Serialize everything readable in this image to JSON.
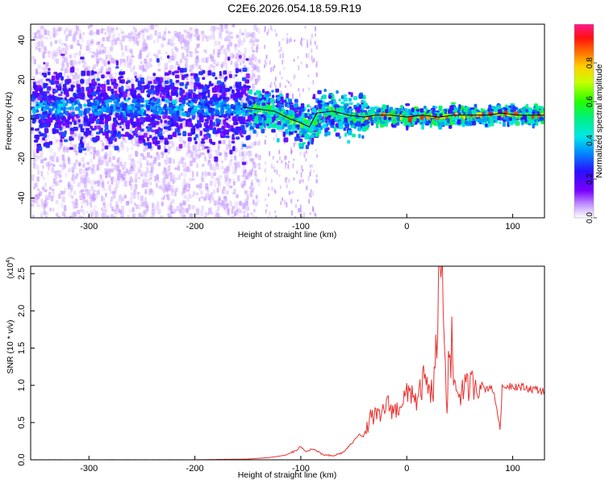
{
  "title": "C2E6.2026.054.18.59.R19",
  "colors": {
    "snr_line": "#e8322f",
    "ridge": "#000000",
    "background": "#ffffff"
  },
  "chart_data": [
    {
      "type": "heatmap",
      "xlabel": "Height of straight line (km)",
      "ylabel": "Frequency (Hz)",
      "xlim": [
        -355,
        130
      ],
      "ylim": [
        -50,
        48
      ],
      "x_ticks": [
        -300,
        -200,
        -100,
        0,
        100
      ],
      "y_ticks": [
        -40,
        -20,
        0,
        20,
        40
      ],
      "grid": false,
      "description": "time-frequency spectrogram; broadband speckle below -140 km, narrow band converging near 2 Hz above -40 km",
      "ridge": {
        "x": [
          -155,
          -140,
          -125,
          -110,
          -100,
          -92,
          -85,
          -70,
          -55,
          -40,
          -30,
          -15,
          0,
          15,
          30,
          45,
          60,
          75,
          90,
          105,
          115,
          130
        ],
        "y": [
          6,
          5,
          4,
          0,
          -2,
          -4,
          3,
          4,
          2,
          1,
          2,
          2,
          1,
          2,
          1,
          2,
          2,
          2,
          3,
          2,
          2,
          2
        ]
      },
      "colorbar": {
        "label": "Normalized spectral amplitude",
        "range": [
          0,
          1
        ],
        "ticks": [
          0.0,
          0.2,
          0.4,
          0.6,
          0.8
        ]
      }
    },
    {
      "type": "line",
      "xlabel": "Height of straight line (km)",
      "ylabel": "SNR (10 * v/v)",
      "y_multiplier": "(x10^4)",
      "y_multiplier_parts": {
        "base": "(x10",
        "exp": "4",
        "close": ")"
      },
      "xlim": [
        -355,
        130
      ],
      "ylim": [
        0,
        2.6
      ],
      "x_ticks": [
        -300,
        -200,
        -100,
        0,
        100
      ],
      "y_ticks": [
        0.0,
        0.5,
        1.0,
        1.5,
        2.0,
        2.5
      ],
      "grid": false,
      "series": [
        {
          "x": [
            -355,
            -300,
            -250,
            -200,
            -150,
            -130,
            -115,
            -105,
            -100,
            -95,
            -90,
            -85,
            -80,
            -70,
            -60,
            -50,
            -45,
            -40,
            -35,
            -30,
            -25,
            -20,
            -15,
            -10,
            -5,
            0,
            5,
            10,
            15,
            20,
            25,
            30,
            33,
            35,
            38,
            40,
            45,
            50,
            55,
            60,
            65,
            70,
            75,
            80,
            85,
            88,
            90,
            95,
            100,
            110,
            120,
            130
          ],
          "y": [
            0.0,
            0.0,
            0.0,
            0.0,
            0.01,
            0.03,
            0.06,
            0.12,
            0.18,
            0.1,
            0.15,
            0.12,
            0.07,
            0.05,
            0.1,
            0.25,
            0.35,
            0.3,
            0.55,
            0.6,
            0.55,
            0.75,
            0.7,
            0.65,
            0.8,
            0.85,
            0.95,
            0.75,
            1.05,
            1.0,
            0.9,
            2.1,
            2.6,
            1.6,
            0.7,
            1.5,
            1.0,
            0.9,
            0.95,
            1.0,
            1.05,
            1.0,
            0.95,
            1.0,
            0.7,
            0.4,
            0.95,
            1.0,
            1.0,
            0.97,
            0.95,
            0.92
          ]
        }
      ]
    }
  ]
}
